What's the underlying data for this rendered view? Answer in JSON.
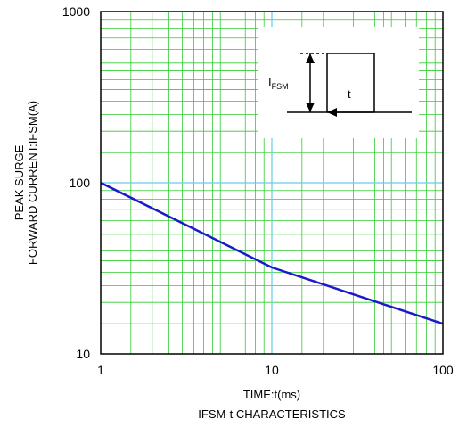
{
  "chart_data": {
    "type": "line",
    "x_scale": "log",
    "y_scale": "log",
    "xlim": [
      1,
      100
    ],
    "ylim": [
      10,
      1000
    ],
    "x_ticks": [
      "1",
      "10",
      "100"
    ],
    "y_ticks": [
      "10",
      "100",
      "1000"
    ],
    "ylabel_line1": "PEAK SURGE",
    "ylabel_line2": "FORWARD CURRENT:IFSM(A)",
    "xlabel": "TIME:t(ms)",
    "caption": "IFSM-t CHARACTERISTICS",
    "grid": true,
    "series": [
      {
        "x": [
          1,
          10,
          100
        ],
        "y": [
          100,
          32,
          15
        ],
        "color": "#1a1acc"
      }
    ],
    "reference_line": {
      "y": 100,
      "color": "#66ccee"
    },
    "reference_vline": {
      "x": 10,
      "color": "#66ccee"
    },
    "grid_color": "#33cc33",
    "inset": {
      "label_main": "I",
      "label_sub": "FSM",
      "label_t": "t"
    }
  }
}
